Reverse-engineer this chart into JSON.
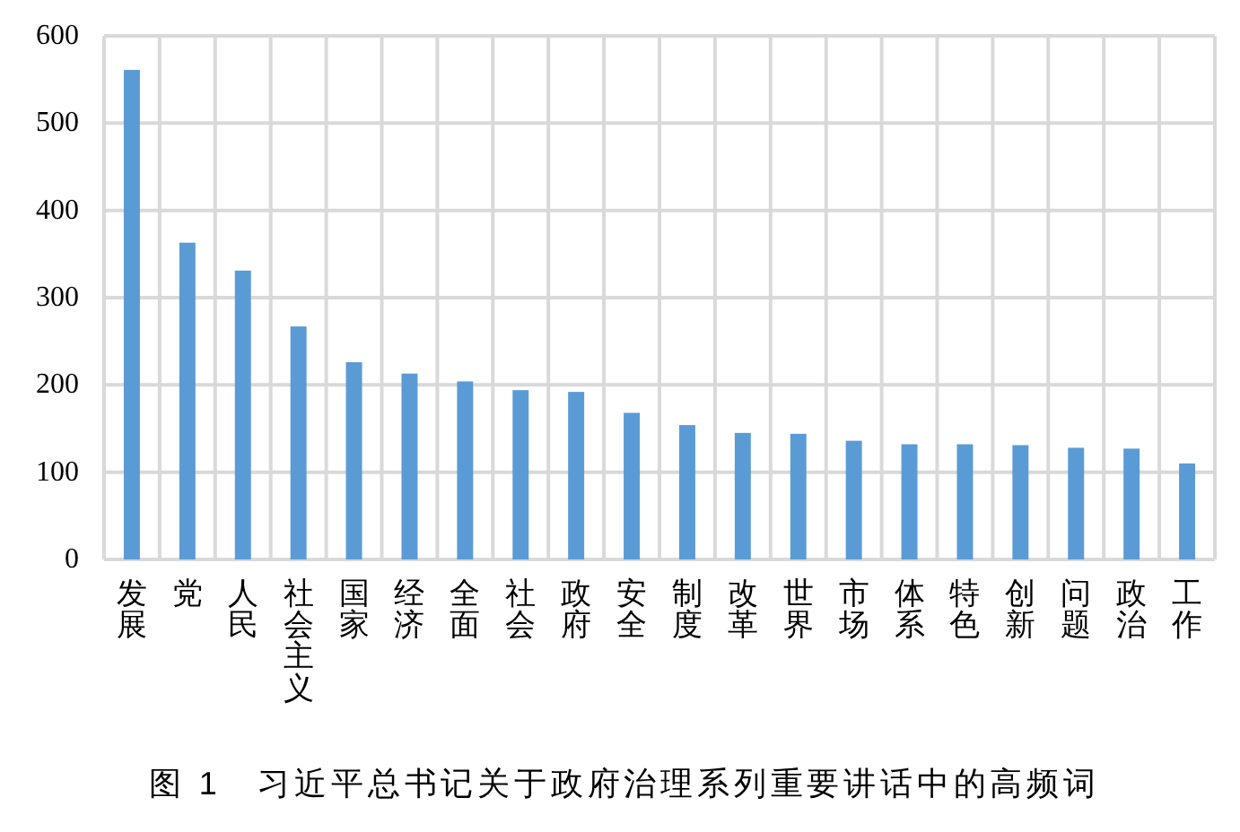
{
  "chart_data": {
    "type": "bar",
    "title": "图 1　习近平总书记关于政府治理系列重要讲话中的高频词",
    "categories": [
      "发展",
      "党",
      "人民",
      "社会主义",
      "国家",
      "经济",
      "全面",
      "社会",
      "政府",
      "安全",
      "制度",
      "改革",
      "世界",
      "市场",
      "体系",
      "特色",
      "创新",
      "问题",
      "政治",
      "工作"
    ],
    "values": [
      561,
      363,
      331,
      267,
      226,
      213,
      204,
      194,
      192,
      168,
      154,
      145,
      144,
      136,
      132,
      132,
      131,
      128,
      127,
      110
    ],
    "color": "#5b9bd5",
    "ylim": [
      0,
      600
    ],
    "yticks": [
      0,
      100,
      200,
      300,
      400,
      500,
      600
    ],
    "grid": true
  }
}
